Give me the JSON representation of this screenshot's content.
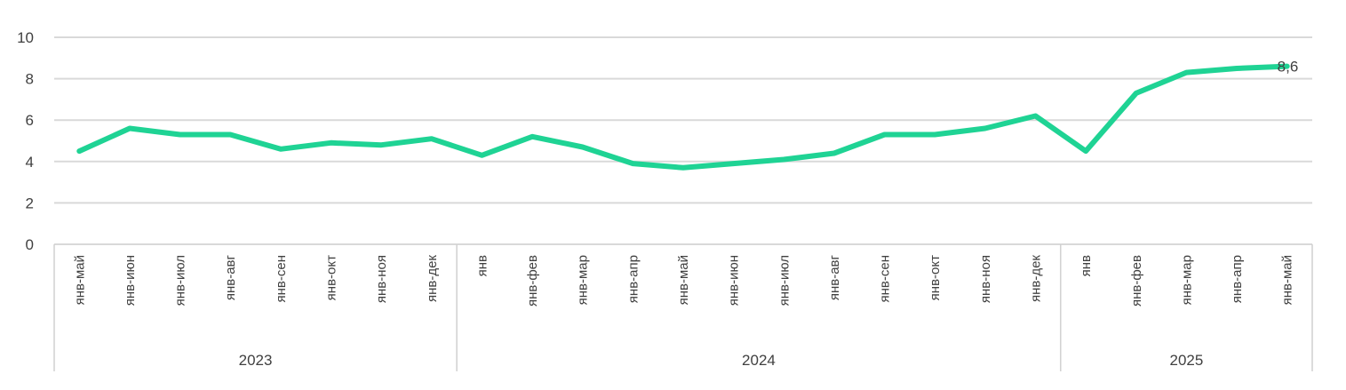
{
  "chart_data": {
    "type": "line",
    "categories": [
      "янв-май",
      "янв-июн",
      "янв-июл",
      "янв-авг",
      "янв-сен",
      "янв-окт",
      "янв-ноя",
      "янв-дек",
      "янв",
      "янв-фев",
      "янв-мар",
      "янв-апр",
      "янв-май",
      "янв-июн",
      "янв-июл",
      "янв-авг",
      "янв-сен",
      "янв-окт",
      "янв-ноя",
      "янв-дек",
      "янв",
      "янв-фев",
      "янв-мар",
      "янв-апр",
      "янв-май"
    ],
    "groups": [
      {
        "label": "2023",
        "count": 8
      },
      {
        "label": "2024",
        "count": 12
      },
      {
        "label": "2025",
        "count": 5
      }
    ],
    "series": [
      {
        "values": [
          4.5,
          5.6,
          5.3,
          5.3,
          4.6,
          4.9,
          4.8,
          5.1,
          4.3,
          5.2,
          4.7,
          3.9,
          3.7,
          3.9,
          4.1,
          4.4,
          5.3,
          5.3,
          5.6,
          6.2,
          4.5,
          7.3,
          8.3,
          8.5,
          8.6
        ],
        "color": "#1fd394"
      }
    ],
    "data_labels": [
      {
        "index": 24,
        "text": "8,6"
      }
    ],
    "yticks": [
      "0",
      "2",
      "4",
      "6",
      "8",
      "10"
    ],
    "ylim": [
      0,
      10
    ],
    "grid": true,
    "title": "",
    "xlabel": "",
    "ylabel": ""
  }
}
